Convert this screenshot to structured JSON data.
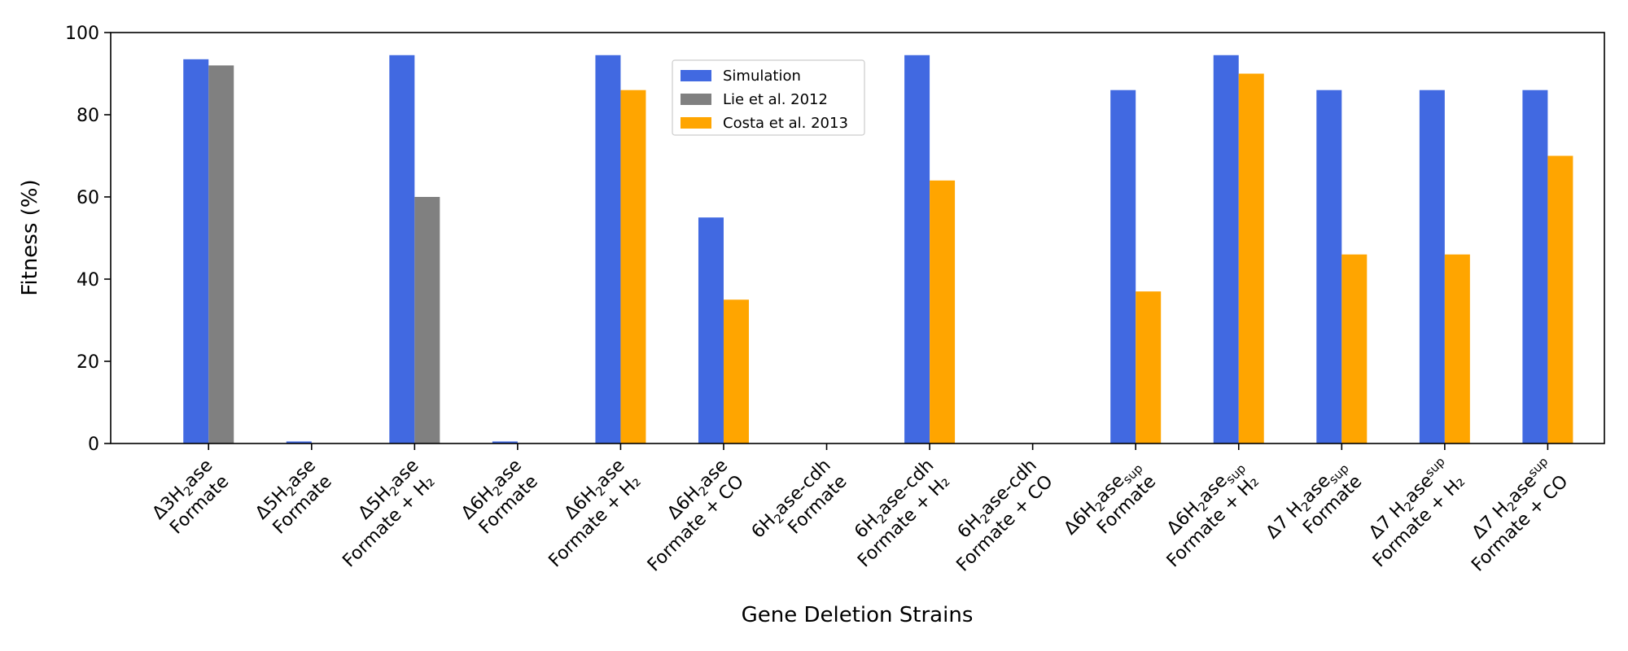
{
  "chart_data": {
    "type": "bar",
    "xlabel": "Gene Deletion Strains",
    "ylabel": "Fitness (%)",
    "ylim": [
      0,
      100
    ],
    "yticks": [
      0,
      20,
      40,
      60,
      80,
      100
    ],
    "grid": false,
    "legend_position": "top-center",
    "categories": [
      {
        "l1": [
          [
            "Δ3H",
            false
          ],
          [
            "2",
            "sub"
          ],
          [
            "ase",
            false
          ]
        ],
        "l2": [
          [
            "Formate",
            false
          ]
        ]
      },
      {
        "l1": [
          [
            "Δ5H",
            false
          ],
          [
            "2",
            "sub"
          ],
          [
            "ase",
            false
          ]
        ],
        "l2": [
          [
            "Formate",
            false
          ]
        ]
      },
      {
        "l1": [
          [
            "Δ5H",
            false
          ],
          [
            "2",
            "sub"
          ],
          [
            "ase",
            false
          ]
        ],
        "l2": [
          [
            "Formate + H₂",
            false
          ]
        ]
      },
      {
        "l1": [
          [
            "Δ6H",
            false
          ],
          [
            "2",
            "sub"
          ],
          [
            "ase",
            false
          ]
        ],
        "l2": [
          [
            "Formate",
            false
          ]
        ]
      },
      {
        "l1": [
          [
            "Δ6H",
            false
          ],
          [
            "2",
            "sub"
          ],
          [
            "ase",
            false
          ]
        ],
        "l2": [
          [
            "Formate + H₂",
            false
          ]
        ]
      },
      {
        "l1": [
          [
            "Δ6H",
            false
          ],
          [
            "2",
            "sub"
          ],
          [
            "ase",
            false
          ]
        ],
        "l2": [
          [
            "Formate + CO",
            false
          ]
        ]
      },
      {
        "l1": [
          [
            "6H",
            false
          ],
          [
            "2",
            "sub"
          ],
          [
            "ase-cdh",
            false
          ]
        ],
        "l2": [
          [
            "Formate",
            false
          ]
        ]
      },
      {
        "l1": [
          [
            "6H",
            false
          ],
          [
            "2",
            "sub"
          ],
          [
            "ase-cdh",
            false
          ]
        ],
        "l2": [
          [
            "Formate + H₂",
            false
          ]
        ]
      },
      {
        "l1": [
          [
            "6H",
            false
          ],
          [
            "2",
            "sub"
          ],
          [
            "ase-cdh",
            false
          ]
        ],
        "l2": [
          [
            "Formate + CO",
            false
          ]
        ]
      },
      {
        "l1": [
          [
            "Δ6H",
            false
          ],
          [
            "2",
            "sub"
          ],
          [
            "ase",
            false
          ],
          [
            "sup",
            "sub"
          ]
        ],
        "l2": [
          [
            "Formate",
            false
          ]
        ]
      },
      {
        "l1": [
          [
            "Δ6H",
            false
          ],
          [
            "2",
            "sub"
          ],
          [
            "ase",
            false
          ],
          [
            "sup",
            "sub"
          ]
        ],
        "l2": [
          [
            "Formate + H₂",
            false
          ]
        ]
      },
      {
        "l1": [
          [
            "Δ7 H",
            false
          ],
          [
            "2",
            "sub"
          ],
          [
            "ase",
            false
          ],
          [
            "sup",
            "sub"
          ]
        ],
        "l2": [
          [
            "Formate",
            false
          ]
        ]
      },
      {
        "l1": [
          [
            "Δ7 H",
            false
          ],
          [
            "2",
            "sub"
          ],
          [
            "ase",
            false
          ],
          [
            "sup",
            "sup"
          ]
        ],
        "l2": [
          [
            "Formate + H₂",
            false
          ]
        ]
      },
      {
        "l1": [
          [
            "Δ7 H",
            false
          ],
          [
            "2",
            "sub"
          ],
          [
            "ase",
            false
          ],
          [
            "sup",
            "sup"
          ]
        ],
        "l2": [
          [
            "Formate + CO",
            false
          ]
        ]
      }
    ],
    "series": [
      {
        "name": "Simulation",
        "color": "#4169e1",
        "slot": 0,
        "values": [
          93.5,
          0.5,
          94.5,
          0.5,
          94.5,
          55,
          0,
          94.5,
          0,
          86,
          94.5,
          86,
          86,
          86
        ]
      },
      {
        "name": "Lie et al. 2012",
        "color": "#808080",
        "slot": 1,
        "values": [
          92,
          0,
          60,
          null,
          null,
          null,
          null,
          null,
          null,
          null,
          null,
          null,
          null,
          null
        ]
      },
      {
        "name": "Costa et al. 2013",
        "color": "#ffa500",
        "slot": 1,
        "values": [
          null,
          null,
          null,
          0,
          86,
          35,
          0,
          64,
          0,
          37,
          90,
          46,
          46,
          70
        ]
      }
    ]
  }
}
